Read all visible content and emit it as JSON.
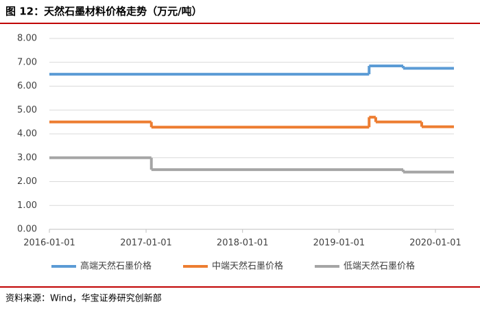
{
  "chart_data": {
    "type": "step",
    "title": "图 12：天然石墨材料价格走势（万元/吨）",
    "source": "资料来源：Wind，华宝证券研究创新部",
    "xlim": [
      "2016-01-01",
      "2020-03-11"
    ],
    "xticks": [
      "2016-01-01",
      "2017-01-01",
      "2018-01-01",
      "2019-01-01",
      "2020-01-01"
    ],
    "ylim": [
      0,
      8
    ],
    "yticks": [
      {
        "value": 0,
        "label": "0.00"
      },
      {
        "value": 1,
        "label": "1.00"
      },
      {
        "value": 2,
        "label": "2.00"
      },
      {
        "value": 3,
        "label": "3.00"
      },
      {
        "value": 4,
        "label": "4.00"
      },
      {
        "value": 5,
        "label": "5.00"
      },
      {
        "value": 6,
        "label": "6.00"
      },
      {
        "value": 7,
        "label": "7.00"
      },
      {
        "value": 8,
        "label": "8.00"
      }
    ],
    "grid": true,
    "legend": "bottom",
    "series": [
      {
        "name": "高端天然石墨价格",
        "color": "#5b9bd5",
        "x": [
          "2016-01-01",
          "2019-04-25",
          "2019-09-01",
          "2020-03-11"
        ],
        "values": [
          6.5,
          6.85,
          6.75,
          6.75
        ]
      },
      {
        "name": "中端天然石墨价格",
        "color": "#ed7d31",
        "x": [
          "2016-01-01",
          "2017-01-21",
          "2019-04-25",
          "2019-05-20",
          "2019-11-10",
          "2020-03-11"
        ],
        "values": [
          4.5,
          4.28,
          4.7,
          4.5,
          4.3,
          4.3
        ]
      },
      {
        "name": "低端天然石墨价格",
        "color": "#a5a5a5",
        "x": [
          "2016-01-01",
          "2017-01-21",
          "2019-09-01",
          "2020-03-11"
        ],
        "values": [
          3.0,
          2.5,
          2.4,
          2.4
        ]
      }
    ]
  }
}
